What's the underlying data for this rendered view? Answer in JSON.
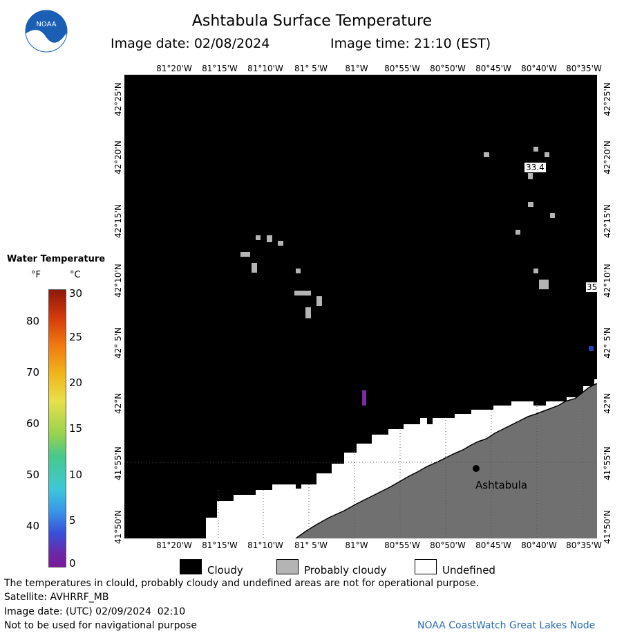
{
  "title": "Ashtabula Surface Temperature",
  "image_date": "Image date: 02/08/2024",
  "image_time": "Image time: 21:10 (EST)",
  "logo_text": "NOAA",
  "lon_labels": [
    "81°20'W",
    "81°15'W",
    "81°10'W",
    "81° 5'W",
    "81°W",
    "80°55'W",
    "80°50'W",
    "80°45'W",
    "80°40'W",
    "80°35'W"
  ],
  "lat_labels": [
    "42°25'N",
    "42°20'N",
    "42°15'N",
    "42°10'N",
    "42° 5'N",
    "42°N",
    "41°55'N",
    "41°50'N"
  ],
  "legend": {
    "title": "Water Temperature",
    "unit_f": "°F",
    "unit_c": "°C",
    "f_ticks": [
      "80",
      "70",
      "60",
      "50",
      "40"
    ],
    "c_ticks": [
      "30",
      "25",
      "20",
      "15",
      "10",
      "5",
      "0"
    ]
  },
  "map_labels": {
    "city": "Ashtabula",
    "temp1": "33.4",
    "temp2": "35"
  },
  "key": {
    "cloudy": "Cloudy",
    "probably_cloudy": "Probably cloudy",
    "undefined": "Undefined",
    "colors": {
      "cloudy": "#000000",
      "probably_cloudy": "#b4b4b4",
      "undefined": "#ffffff",
      "land": "#707070"
    }
  },
  "footer": {
    "note": "The temperatures in clould, probably cloudy and undefined areas are not for operational purpose.",
    "satellite": "Satellite: AVHRRF_MB",
    "utc_date": "Image date: (UTC) 02/09/2024  02:10",
    "nav": "Not to be used for navigational purpose",
    "credit": "NOAA CoastWatch Great Lakes Node"
  }
}
